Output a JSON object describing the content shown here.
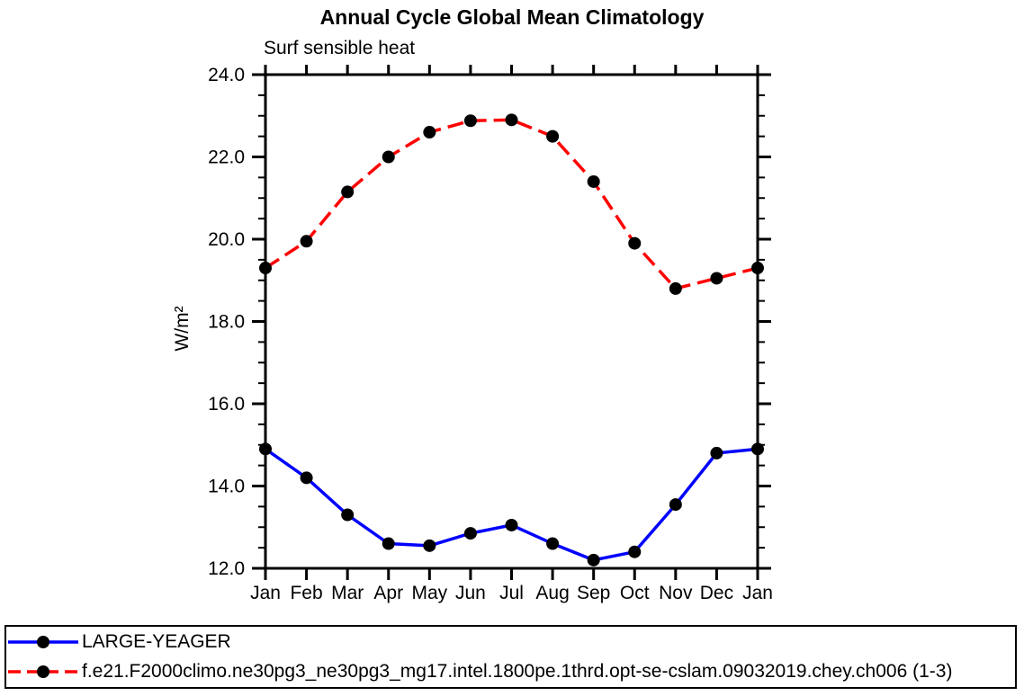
{
  "chart_data": {
    "type": "line",
    "title": "Annual Cycle Global Mean Climatology",
    "subtitle": "Surf sensible heat",
    "ylabel": "W/m²",
    "x_categories": [
      "Jan",
      "Feb",
      "Mar",
      "Apr",
      "May",
      "Jun",
      "Jul",
      "Aug",
      "Sep",
      "Oct",
      "Nov",
      "Dec",
      "Jan"
    ],
    "ylim": [
      12.0,
      24.0
    ],
    "ytick_major_step": 2.0,
    "ytick_minor_step": 0.5,
    "ytick_labels": [
      "12.0",
      "14.0",
      "16.0",
      "18.0",
      "20.0",
      "22.0",
      "24.0"
    ],
    "grid": false,
    "legend_position": "bottom",
    "frame_color": "#000000",
    "background_color": "#ffffff",
    "series": [
      {
        "name": "LARGE-YEAGER",
        "line_color": "#0000ff",
        "line_style": "solid",
        "marker": "filled-circle",
        "marker_color": "#000000",
        "values": [
          14.9,
          14.2,
          13.3,
          12.6,
          12.55,
          12.85,
          13.05,
          12.6,
          12.2,
          12.4,
          13.55,
          14.8,
          14.9
        ]
      },
      {
        "name": "f.e21.F2000climo.ne30pg3_ne30pg3_mg17.intel.1800pe.1thrd.opt-se-cslam.09032019.chey.ch006 (1-3)",
        "line_color": "#ff0000",
        "line_style": "dashed",
        "marker": "filled-circle",
        "marker_color": "#000000",
        "values": [
          19.3,
          19.95,
          21.15,
          22.0,
          22.6,
          22.88,
          22.9,
          22.5,
          21.4,
          19.9,
          18.8,
          19.05,
          19.3
        ]
      }
    ]
  }
}
